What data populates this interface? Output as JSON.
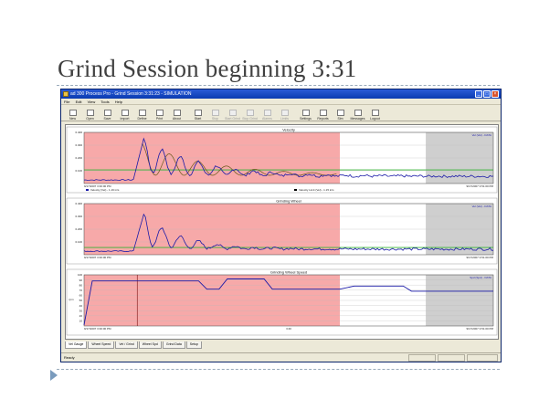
{
  "slide": {
    "title": "Grind Session beginning 3:31"
  },
  "window": {
    "title": "ad 300 Process Pro - Grind Session 3:31:23 - SIMULATION",
    "controls": [
      "_",
      "□",
      "×"
    ]
  },
  "menu": [
    "File",
    "Edit",
    "View",
    "Tools",
    "Help"
  ],
  "toolbar": [
    {
      "label": "New",
      "enabled": true
    },
    {
      "label": "Open",
      "enabled": true
    },
    {
      "label": "Save",
      "enabled": true
    },
    {
      "label": "Import",
      "enabled": true
    },
    {
      "label": "Define",
      "enabled": true
    },
    {
      "label": "Print",
      "enabled": true
    },
    {
      "label": "About",
      "enabled": true
    },
    {
      "label": "Start",
      "enabled": true
    },
    {
      "label": "Stop",
      "enabled": false
    },
    {
      "label": "Start Grind",
      "enabled": false
    },
    {
      "label": "Stop Grind",
      "enabled": false
    },
    {
      "label": "Alarms",
      "enabled": false
    },
    {
      "label": "Limits",
      "enabled": false
    },
    {
      "label": "Settings",
      "enabled": true
    },
    {
      "label": "Reports",
      "enabled": true
    },
    {
      "label": "Sim",
      "enabled": true
    },
    {
      "label": "Messages",
      "enabled": true
    },
    {
      "label": "Logout",
      "enabled": true
    }
  ],
  "charts": [
    {
      "title": "Velocity",
      "legend": "Vel (Vel) - DATA",
      "yticks": [
        "0.400",
        "0.300",
        "0.200",
        "0.100"
      ],
      "x_start": "9/17/2007 3:30:00 PM",
      "x_end": "9/17/2007 3:51:00 PM",
      "series_labels": [
        "Velocity (Vel) - 1.19 in/s",
        "Velocity Limit (Vel) - 1.15 in/s"
      ],
      "limit_line": 0.14
    },
    {
      "title": "Grinding Wheel",
      "legend": "Vel (Vel) - DATA",
      "yticks": [
        "0.400",
        "0.300",
        "0.200",
        "0.100"
      ],
      "x_start": "9/17/2007 3:30:00 PM",
      "x_end": "9/17/2007 3:51:00 PM",
      "limit_line": 0.075
    },
    {
      "title": "Grinding Wheel Speed",
      "legend": "Spd (Spd) - DATA",
      "yticks": [
        "100",
        "90",
        "80",
        "70",
        "60",
        "50",
        "40",
        "30",
        "20",
        "10"
      ],
      "x_start": "9/17/2007 3:30:00 PM",
      "x_mid": "3:40",
      "x_end": "9/17/2007 3:51:00 PM",
      "y_units": "rpm"
    }
  ],
  "tabs": [
    "Vel Gauge",
    "Wheel Speed",
    "Vel / Grind",
    "Wheel Spd",
    "Grind Data",
    "Setup"
  ],
  "status": {
    "text": "Ready"
  },
  "colors": {
    "alarm_region": "#f7a9a9",
    "idle_region": "#cfcfcf",
    "trace": "#1a1aa8",
    "limit": "#33b233",
    "secondary_trace": "#6b5a1a"
  }
}
